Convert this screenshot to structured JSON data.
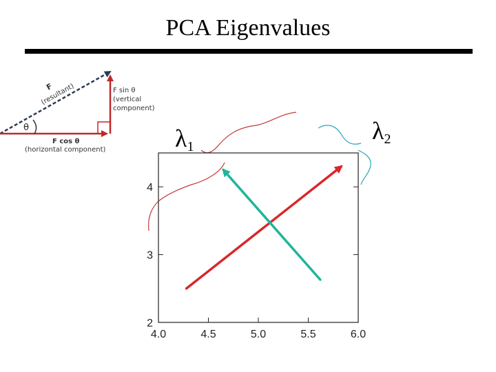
{
  "slide": {
    "title": "PCA Eigenvalues"
  },
  "labels": {
    "lambda1_symbol": "λ",
    "lambda1_subscript": "1",
    "lambda2_symbol": "λ",
    "lambda2_subscript": "2"
  },
  "force_diagram": {
    "resultant_label": "F",
    "resultant_sub": "(resultant)",
    "vertical_label": "F sin θ",
    "vertical_sub1": "(vertical",
    "vertical_sub2": "component)",
    "horizontal_label": "F cos θ",
    "horizontal_sub": "(horizontal component)",
    "angle_label": "θ",
    "colors": {
      "resultant": "#2b3a55",
      "component": "#c0282a"
    }
  },
  "chart_data": {
    "type": "scatter",
    "title": "",
    "xlabel": "",
    "ylabel": "",
    "xlim": [
      4.0,
      6.0
    ],
    "ylim": [
      2,
      4.5
    ],
    "x_ticks": [
      "4.0",
      "4.5",
      "5.0",
      "5.5",
      "6.0"
    ],
    "y_ticks": [
      "2",
      "3",
      "4"
    ],
    "vectors": [
      {
        "name": "",
        "from": [
          4.28,
          2.5
        ],
        "to": [
          5.83,
          4.3
        ],
        "color": "#d8272a"
      },
      {
        "name": "",
        "from": [
          5.62,
          2.63
        ],
        "to": [
          4.65,
          4.25
        ],
        "color": "#1fb59a"
      }
    ],
    "annotation_colors": {
      "lambda1_brace": "#c4383a",
      "lambda2_brace": "#2aa3b8"
    }
  }
}
